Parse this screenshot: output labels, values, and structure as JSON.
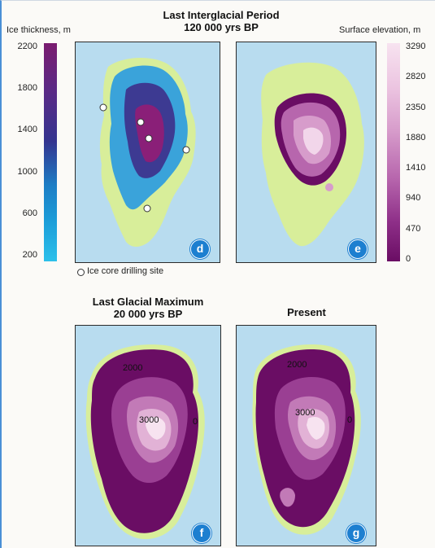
{
  "top": {
    "title_line1": "Last Interglacial Period",
    "title_line2": "120 000 yrs BP",
    "left_scale": {
      "title": "Ice thickness, m",
      "ticks": [
        "2200",
        "1800",
        "1400",
        "1000",
        "600",
        "200"
      ],
      "colors": [
        "#7a1c6f",
        "#34348f",
        "#1c8ccf",
        "#26b5e4"
      ]
    },
    "right_scale": {
      "title": "Surface elevation, m",
      "ticks": [
        "3290",
        "2820",
        "2350",
        "1880",
        "1410",
        "940",
        "470",
        "0"
      ],
      "colors": [
        "#f7e3f0",
        "#e2b2d6",
        "#c27ab7",
        "#9a3f93",
        "#6a0d64"
      ]
    },
    "panel_d_badge": "d",
    "panel_e_badge": "e",
    "legend_label": "Ice core drilling site"
  },
  "bottom": {
    "left_title_line1": "Last Glacial Maximum",
    "left_title_line2": "20 000 yrs BP",
    "right_title": "Present",
    "panel_f": {
      "badge": "f",
      "contour_outer": "2000",
      "contour_inner": "3000",
      "contour_edge": "0"
    },
    "panel_g": {
      "badge": "g",
      "contour_outer": "2000",
      "contour_inner": "3000",
      "contour_edge": "0"
    }
  },
  "colors": {
    "ocean": "#b8dcef",
    "land": "#d8ee9a",
    "badge": "#1d7fd0"
  }
}
